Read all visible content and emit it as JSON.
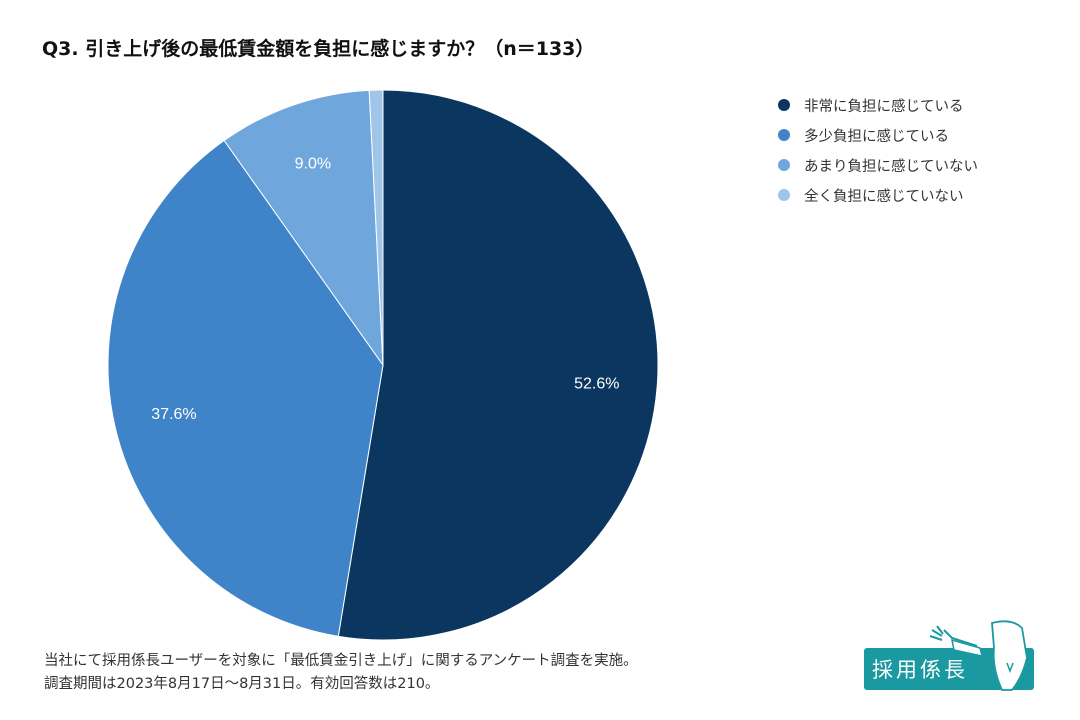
{
  "chart_data": {
    "type": "pie",
    "title": "Q3. 引き上げ後の最低賃金額を負担に感じますか？（n＝133）",
    "slices": [
      {
        "name": "非常に負担に感じている",
        "value": 52.6,
        "label": "52.6%",
        "color": "#0b3660"
      },
      {
        "name": "多少負担に感じている",
        "value": 37.6,
        "label": "37.6%",
        "color": "#3f84c8"
      },
      {
        "name": "あまり負担に感じていない",
        "value": 9.0,
        "label": "9.0%",
        "color": "#6fa7dc"
      },
      {
        "name": "全く負担に感じていない",
        "value": 0.8,
        "label": "",
        "color": "#9fc5e8"
      }
    ],
    "start_angle": "top",
    "direction": "clockwise",
    "legend_position": "top-right"
  },
  "footer": {
    "line1": "当社にて採用係長ユーザーを対象に「最低賃金引き上げ」に関するアンケート調査を実施。",
    "line2": "調査期間は2023年8月17日〜8月31日。有効回答数は210。"
  },
  "logo": {
    "text": "採用係長",
    "color": "#1a9aa0"
  }
}
